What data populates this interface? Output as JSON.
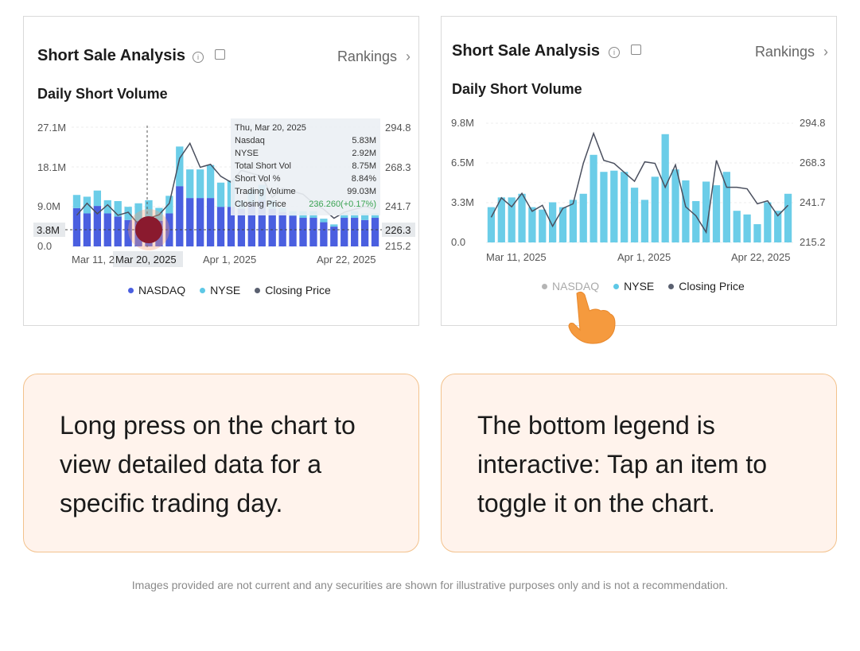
{
  "left_card": {
    "title": "Short Sale Analysis",
    "info_icon": "info-icon",
    "share_icon": "share-icon",
    "rankings_label": "Rankings",
    "rankings_icon": "chevron-right-icon",
    "subtitle": "Daily Short Volume",
    "y_left_ticks": [
      "27.1M",
      "18.1M",
      "9.0M",
      "0.0"
    ],
    "y_right_ticks": [
      "294.8",
      "268.3",
      "241.7",
      "215.2"
    ],
    "x_ticks": [
      "Mar 11, 2",
      "Apr 1, 2025",
      "Apr 22, 2025"
    ],
    "crosshair_date": "Mar 20, 2025",
    "crosshair_left_value": "3.8M",
    "crosshair_right_value": "226.3",
    "tooltip": {
      "date": "Thu, Mar 20, 2025",
      "rows": [
        {
          "label": "Nasdaq",
          "value": "5.83M"
        },
        {
          "label": "NYSE",
          "value": "2.92M"
        },
        {
          "label": "Total Short Vol",
          "value": "8.75M"
        },
        {
          "label": "Short Vol %",
          "value": "8.84%"
        },
        {
          "label": "Trading Volume",
          "value": "99.03M"
        }
      ],
      "closing_label": "Closing Price",
      "closing_value": "236.260(+0.17%)"
    },
    "legend": [
      {
        "label": "NASDAQ",
        "color": "#4a5fe0"
      },
      {
        "label": "NYSE",
        "color": "#5ec8e6"
      },
      {
        "label": "Closing Price",
        "color": "#5a6070"
      }
    ]
  },
  "right_card": {
    "title": "Short Sale Analysis",
    "info_icon": "info-icon",
    "share_icon": "share-icon",
    "rankings_label": "Rankings",
    "rankings_icon": "chevron-right-icon",
    "subtitle": "Daily Short Volume",
    "y_left_ticks": [
      "9.8M",
      "6.5M",
      "3.3M",
      "0.0"
    ],
    "y_right_ticks": [
      "294.8",
      "268.3",
      "241.7",
      "215.2"
    ],
    "x_ticks": [
      "Mar 11, 2025",
      "Apr 1, 2025",
      "Apr 22, 2025"
    ],
    "legend": [
      {
        "label": "NASDAQ",
        "color": "#b5b5b5"
      },
      {
        "label": "NYSE",
        "color": "#5ec8e6"
      },
      {
        "label": "Closing Price",
        "color": "#5a6070"
      }
    ],
    "pointer_icon": "hand-pointer-icon"
  },
  "hints": {
    "left": "Long press on the chart to view detailed data for a specific trading day.",
    "right": "The bottom legend is interactive: Tap an item to toggle it on the chart."
  },
  "disclaimer": "Images provided are not current and any securities are shown for illustrative purposes only and is not a recommendation.",
  "chart_data": [
    {
      "type": "bar",
      "stacked": true,
      "categories_count": 30,
      "series": [
        {
          "name": "NASDAQ",
          "values": [
            8.7,
            7.5,
            9.2,
            7.5,
            6.8,
            6.0,
            5.8,
            6.0,
            5.83,
            7.5,
            13.7,
            11.0,
            11.0,
            11.0,
            9.0,
            9.0,
            8.5,
            10.0,
            10.5,
            8.5,
            7.8,
            7.0,
            6.5,
            6.5,
            5.5,
            4.5,
            6.5,
            6.5,
            6.0,
            6.5
          ]
        },
        {
          "name": "NYSE",
          "values": [
            3.0,
            3.8,
            3.5,
            3.0,
            3.5,
            3.0,
            4.0,
            4.5,
            2.92,
            4.0,
            9.0,
            6.5,
            6.5,
            7.5,
            5.5,
            6.0,
            2.0,
            3.0,
            3.5,
            2.0,
            1.0,
            1.0,
            1.5,
            1.5,
            0.8,
            0.5,
            1.0,
            1.5,
            1.5,
            1.0
          ]
        },
        {
          "name": "Closing Price",
          "type": "line",
          "values": [
            236,
            244,
            237,
            243,
            236,
            238,
            230,
            234,
            236.3,
            244,
            274,
            284,
            268,
            270,
            262,
            258,
            266,
            264,
            262,
            248,
            254,
            252,
            250,
            244,
            240,
            234,
            238,
            240,
            242,
            240
          ]
        }
      ],
      "xlabels": [
        "Mar 11, 2025",
        "Apr 1, 2025",
        "Apr 22, 2025"
      ],
      "ylim_left": [
        0,
        27.1
      ],
      "ylim_right": [
        215.2,
        294.8
      ]
    },
    {
      "type": "bar",
      "stacked": false,
      "categories_count": 30,
      "series": [
        {
          "name": "NYSE",
          "values": [
            2.9,
            3.7,
            3.7,
            4.0,
            2.9,
            2.7,
            3.3,
            2.9,
            3.5,
            4.0,
            7.2,
            5.8,
            5.9,
            5.8,
            4.5,
            3.5,
            5.4,
            8.9,
            6.0,
            5.1,
            3.4,
            5.0,
            4.7,
            5.8,
            2.6,
            2.3,
            1.5,
            3.3,
            2.6,
            4.0
          ]
        },
        {
          "name": "Closing Price",
          "type": "line",
          "values": [
            232,
            245,
            239,
            248,
            236,
            240,
            226,
            238,
            241,
            268,
            288,
            270,
            268,
            262,
            256,
            269,
            268,
            252,
            267,
            239,
            233,
            222,
            270,
            252,
            252,
            251,
            241,
            243,
            233,
            240
          ]
        }
      ],
      "xlabels": [
        "Mar 11, 2025",
        "Apr 1, 2025",
        "Apr 22, 2025"
      ],
      "ylim_left": [
        0,
        9.8
      ],
      "ylim_right": [
        215.2,
        294.8
      ]
    }
  ]
}
